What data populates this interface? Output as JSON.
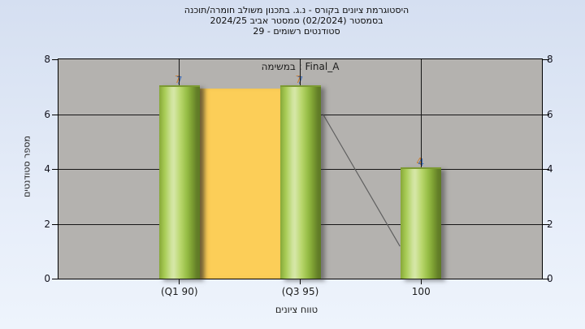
{
  "title": {
    "line1": "היסטוגרמת ציונים בקורס - נ.ג. בתכנון משולב חומרה/תוכנה",
    "line2": "בסמסטר (02/2024) סמסטר אביב 2024/25",
    "line3": "סטודנטים רשומים - 29"
  },
  "chart_data": {
    "type": "bar",
    "categories": [
      "(Q1 90)",
      "(Q3 95)",
      "100"
    ],
    "values": [
      7,
      7,
      4
    ],
    "series_label": "במשימה : Final_A",
    "xlabel": "טווח ציונים",
    "ylabel": "מספר סטודנטים",
    "ylim": [
      0,
      8
    ],
    "yticks": [
      0,
      2,
      4,
      6,
      8
    ],
    "grid": true,
    "legend_position": "none",
    "bar_style": "3d-cylinder-green",
    "iqr_band": {
      "from_category": 0,
      "to_category": 1,
      "top_value": 7,
      "meaning": "interquartile range Q1-Q3"
    },
    "overlay_line": {
      "from_value": 6,
      "to_value": 1.18,
      "from_edge": "right-of-bar-2",
      "to_edge": "left-of-bar-3"
    }
  },
  "colors": {
    "background_top": "#d5dff1",
    "background_bottom": "#eef4fc",
    "plot_bg": "#b4b2af",
    "grid": "#161616",
    "band_yellow": "#fcce58",
    "bar_green_light": "#d6e7a8",
    "bar_green_mid": "#a9cd57",
    "bar_green_dark": "#5d7a24",
    "bar_label_blue": "#3f6cb4",
    "bar_label_orange": "#c8813a",
    "overlay_line": "#5f5f5f"
  }
}
